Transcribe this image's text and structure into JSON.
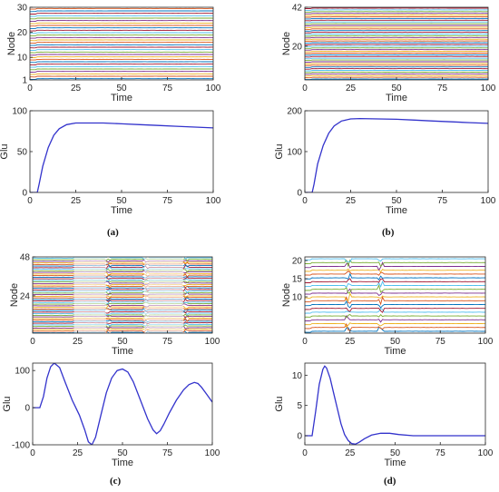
{
  "colors": {
    "glu_line": "#3333cc",
    "axis": "#262626",
    "palette": [
      "#0072BD",
      "#D95319",
      "#EDB120",
      "#7E2F8E",
      "#77AC30",
      "#4DBEEE",
      "#A2142F"
    ]
  },
  "captions": [
    "(a)",
    "(b)",
    "(c)",
    "(d)"
  ],
  "chart_data": [
    {
      "id": "a_node",
      "type": "line",
      "description_of_series": "node state traces",
      "xlabel": "Time",
      "ylabel": "Node",
      "xlim": [
        0,
        100
      ],
      "ylim": [
        1,
        30
      ],
      "xticks": [
        0,
        25,
        50,
        75,
        100
      ],
      "yticks": [
        1,
        10,
        20,
        30
      ],
      "node_count": 30,
      "events": [
        4
      ]
    },
    {
      "id": "a_glu",
      "type": "line",
      "xlabel": "Time",
      "ylabel": "Glu",
      "xlim": [
        0,
        100
      ],
      "ylim": [
        0,
        100
      ],
      "xticks": [
        0,
        25,
        50,
        75,
        100
      ],
      "yticks": [
        0,
        50,
        100
      ],
      "x": [
        0,
        4,
        5,
        7,
        10,
        13,
        16,
        20,
        25,
        30,
        40,
        50,
        60,
        70,
        80,
        90,
        100
      ],
      "y": [
        0,
        0,
        10,
        32,
        55,
        70,
        78,
        83,
        85,
        85,
        85,
        84,
        83,
        82,
        81,
        80,
        79
      ]
    },
    {
      "id": "b_node",
      "type": "line",
      "xlabel": "Time",
      "ylabel": "Node",
      "xlim": [
        0,
        100
      ],
      "ylim": [
        1,
        42
      ],
      "xticks": [
        0,
        25,
        50,
        75,
        100
      ],
      "yticks": [
        20,
        42
      ],
      "node_count": 42,
      "events": [
        4
      ]
    },
    {
      "id": "b_glu",
      "type": "line",
      "xlabel": "Time",
      "ylabel": "Glu",
      "xlim": [
        0,
        100
      ],
      "ylim": [
        0,
        200
      ],
      "xticks": [
        0,
        25,
        50,
        75,
        100
      ],
      "yticks": [
        0,
        100,
        200
      ],
      "x": [
        0,
        4,
        5,
        7,
        10,
        13,
        16,
        20,
        25,
        30,
        40,
        50,
        60,
        70,
        80,
        90,
        100
      ],
      "y": [
        0,
        0,
        20,
        70,
        115,
        145,
        163,
        175,
        180,
        181,
        180,
        179,
        177,
        175,
        173,
        171,
        169
      ]
    },
    {
      "id": "c_node",
      "type": "line",
      "xlabel": "Time",
      "ylabel": "Node",
      "xlim": [
        0,
        100
      ],
      "ylim": [
        1,
        48
      ],
      "xticks": [
        0,
        25,
        50,
        75,
        100
      ],
      "yticks": [
        24,
        48
      ],
      "node_count": 48,
      "events": [
        23,
        41,
        62,
        84
      ]
    },
    {
      "id": "c_glu",
      "type": "line",
      "xlabel": "Time",
      "ylabel": "Glu",
      "xlim": [
        0,
        100
      ],
      "ylim": [
        -100,
        120
      ],
      "xticks": [
        0,
        25,
        50,
        75,
        100
      ],
      "yticks": [
        -100,
        0,
        100
      ],
      "x": [
        0,
        4,
        6,
        8,
        10,
        12,
        15,
        18,
        22,
        26,
        29,
        31,
        33,
        35,
        38,
        41,
        44,
        47,
        50,
        53,
        56,
        60,
        64,
        67,
        69,
        71,
        73,
        76,
        80,
        84,
        87,
        90,
        92,
        94,
        97,
        100
      ],
      "y": [
        0,
        0,
        30,
        80,
        110,
        120,
        108,
        70,
        20,
        -20,
        -60,
        -92,
        -100,
        -80,
        -20,
        40,
        80,
        100,
        104,
        96,
        70,
        20,
        -30,
        -60,
        -70,
        -62,
        -45,
        -15,
        20,
        48,
        62,
        68,
        65,
        55,
        35,
        15
      ]
    },
    {
      "id": "d_node",
      "type": "line",
      "xlabel": "Time",
      "ylabel": "Node",
      "xlim": [
        0,
        100
      ],
      "ylim": [
        0,
        21
      ],
      "xticks": [
        0,
        25,
        50,
        75,
        100
      ],
      "yticks": [
        10,
        15,
        20
      ],
      "node_count": 20,
      "events": [
        4,
        23,
        41
      ]
    },
    {
      "id": "d_glu",
      "type": "line",
      "xlabel": "Time",
      "ylabel": "Glu",
      "xlim": [
        0,
        100
      ],
      "ylim": [
        -1.5,
        12
      ],
      "xticks": [
        0,
        25,
        50,
        75,
        100
      ],
      "yticks": [
        0,
        5,
        10
      ],
      "x": [
        0,
        4,
        6,
        8,
        10,
        11,
        12,
        14,
        16,
        18,
        20,
        22,
        24,
        26,
        28,
        30,
        33,
        37,
        42,
        47,
        52,
        60,
        70,
        80,
        90,
        100
      ],
      "y": [
        0,
        0,
        4,
        8.5,
        11,
        11.5,
        11.2,
        9.5,
        7,
        4.5,
        2,
        0.2,
        -0.8,
        -1.3,
        -1.4,
        -1.1,
        -0.5,
        0.1,
        0.4,
        0.4,
        0.2,
        0,
        0,
        0,
        0,
        0
      ]
    }
  ]
}
